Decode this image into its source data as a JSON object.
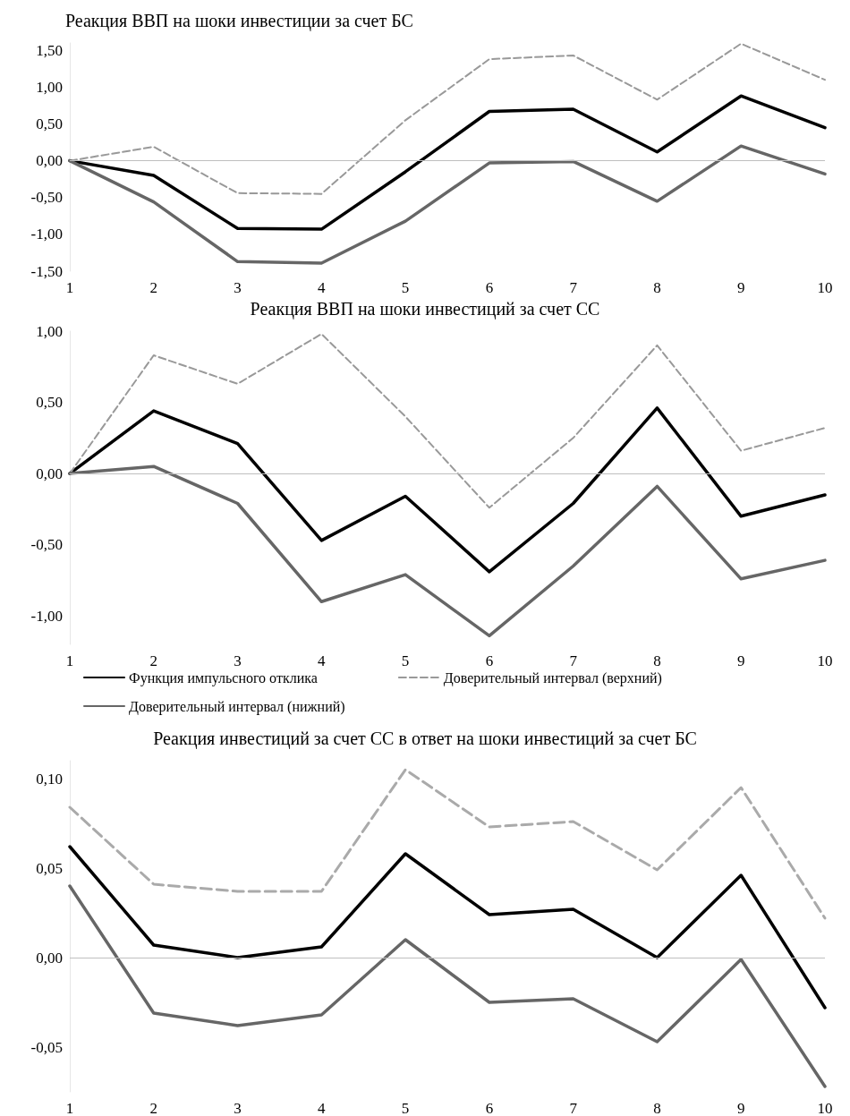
{
  "chart_data": [
    {
      "type": "line",
      "title": "Реакция ВВП на шоки инвестиции за счет БС",
      "categories": [
        "1",
        "2",
        "3",
        "4",
        "5",
        "6",
        "7",
        "8",
        "9",
        "10"
      ],
      "ylim": [
        -1.5,
        1.6
      ],
      "yticks": [
        {
          "value": -1.5,
          "label": "-1,50"
        },
        {
          "value": -1,
          "label": "-1,00"
        },
        {
          "value": -0.5,
          "label": "-0,50"
        },
        {
          "value": 0,
          "label": "0,00"
        },
        {
          "value": 0.5,
          "label": "0,50"
        },
        {
          "value": 1,
          "label": "1,00"
        },
        {
          "value": 1.5,
          "label": "1,50"
        }
      ],
      "grid": false,
      "legend": false,
      "marker": "none",
      "ref_lines": [
        {
          "axis": "y",
          "value": 0,
          "color": "#bfbfbf"
        }
      ],
      "series": [
        {
          "color": "#000000",
          "line_style": "solid",
          "values": [
            0,
            -0.2,
            -0.92,
            -0.93,
            -0.15,
            0.67,
            0.7,
            0.12,
            0.88,
            0.45
          ]
        },
        {
          "color": "#999999",
          "line_style": "dashed",
          "values": [
            0,
            0.19,
            -0.44,
            -0.45,
            0.55,
            1.38,
            1.43,
            0.83,
            1.59,
            1.1
          ]
        },
        {
          "color": "#666666",
          "line_style": "solid",
          "values": [
            0,
            -0.56,
            -1.37,
            -1.39,
            -0.82,
            -0.03,
            -0.01,
            -0.55,
            0.2,
            -0.18
          ]
        }
      ]
    },
    {
      "type": "line",
      "title": "Реакция ВВП на шоки инвестиций за счет СС",
      "categories": [
        "1",
        "2",
        "3",
        "4",
        "5",
        "6",
        "7",
        "8",
        "9",
        "10"
      ],
      "ylim": [
        -1.2,
        1.0
      ],
      "yticks": [
        {
          "value": -1,
          "label": "-1,00"
        },
        {
          "value": -0.5,
          "label": "-0,50"
        },
        {
          "value": 0,
          "label": "0,00"
        },
        {
          "value": 0.5,
          "label": "0,50"
        },
        {
          "value": 1,
          "label": "1,00"
        }
      ],
      "grid": false,
      "legend": "bottom",
      "marker": "none",
      "ref_lines": [
        {
          "axis": "y",
          "value": 0,
          "color": "#bfbfbf"
        }
      ],
      "series": [
        {
          "name": "Функция импульсного отклика",
          "color": "#000000",
          "line_style": "solid",
          "values": [
            0,
            0.44,
            0.21,
            -0.47,
            -0.16,
            -0.69,
            -0.21,
            0.46,
            -0.3,
            -0.15
          ]
        },
        {
          "name": "Доверительный интервал (верхний)",
          "color": "#999999",
          "line_style": "dashed",
          "values": [
            0,
            0.83,
            0.63,
            0.98,
            0.4,
            -0.24,
            0.25,
            0.9,
            0.16,
            0.32
          ]
        },
        {
          "name": "Доверительный интервал (нижний)",
          "color": "#666666",
          "line_style": "solid",
          "values": [
            0,
            0.05,
            -0.21,
            -0.9,
            -0.71,
            -1.14,
            -0.65,
            -0.09,
            -0.74,
            -0.61
          ]
        }
      ]
    },
    {
      "type": "line",
      "title": "Реакция инвестиций за счет СС в ответ на шоки инвестиций за счет БС",
      "categories": [
        "1",
        "2",
        "3",
        "4",
        "5",
        "6",
        "7",
        "8",
        "9",
        "10"
      ],
      "ylim": [
        -0.075,
        0.11
      ],
      "yticks": [
        {
          "value": -0.05,
          "label": "-0,05"
        },
        {
          "value": 0,
          "label": "0,00"
        },
        {
          "value": 0.05,
          "label": "0,05"
        },
        {
          "value": 0.1,
          "label": "0,10"
        }
      ],
      "grid": false,
      "legend": false,
      "marker": "none",
      "ref_lines": [
        {
          "axis": "y",
          "value": 0,
          "color": "#bfbfbf"
        }
      ],
      "series": [
        {
          "color": "#000000",
          "line_style": "solid",
          "values": [
            0.062,
            0.007,
            0,
            0.006,
            0.058,
            0.024,
            0.027,
            0,
            0.046,
            -0.028
          ]
        },
        {
          "color": "#aaaaaa",
          "line_style": "dashed",
          "values": [
            0.084,
            0.041,
            0.037,
            0.037,
            0.105,
            0.073,
            0.076,
            0.049,
            0.095,
            0.022
          ]
        },
        {
          "color": "#666666",
          "line_style": "solid",
          "values": [
            0.04,
            -0.031,
            -0.038,
            -0.032,
            0.01,
            -0.025,
            -0.023,
            -0.047,
            -0.001,
            -0.072
          ]
        }
      ]
    }
  ]
}
